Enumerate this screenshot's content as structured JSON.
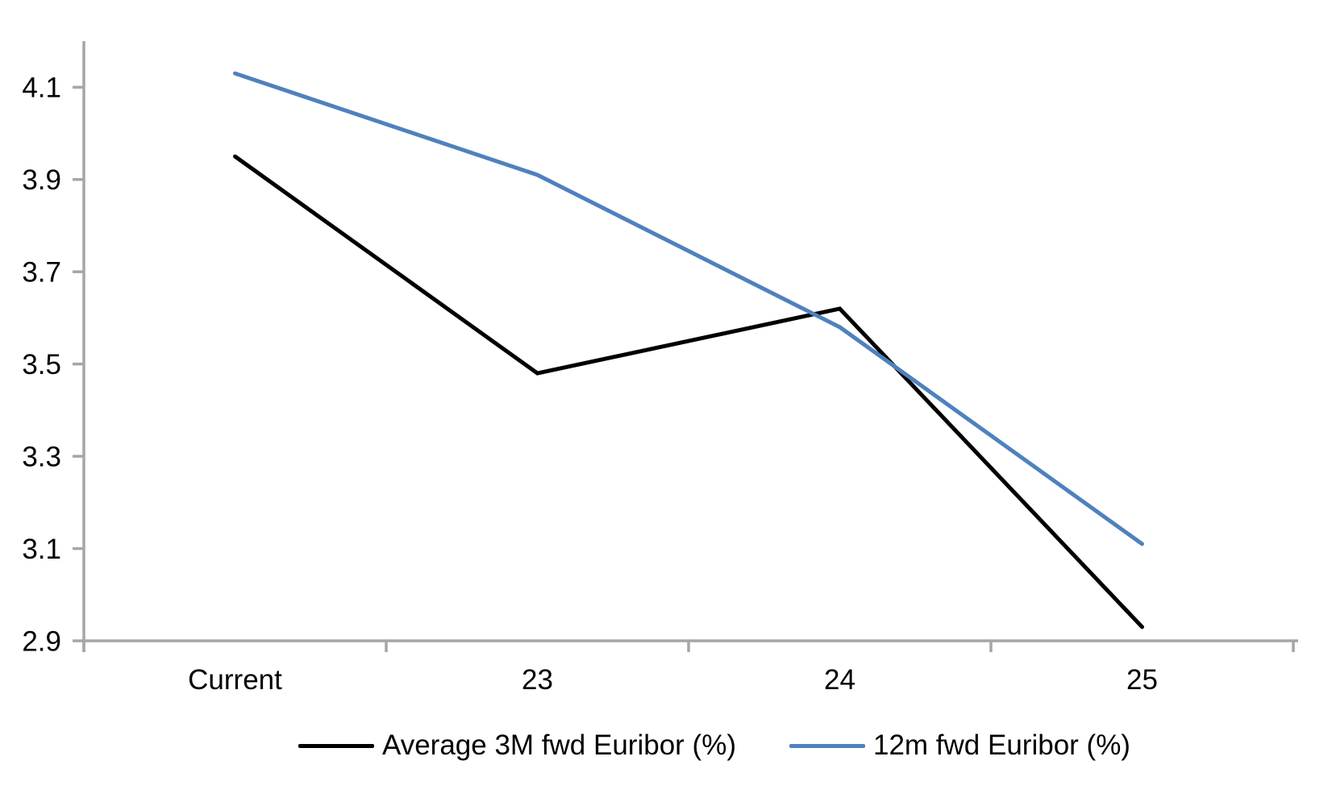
{
  "chart_data": {
    "type": "line",
    "title": "",
    "xlabel": "",
    "ylabel": "",
    "categories": [
      "Current",
      "23",
      "24",
      "25"
    ],
    "series": [
      {
        "name": "Average 3M fwd Euribor (%)",
        "color": "#000000",
        "values": [
          3.95,
          3.48,
          3.62,
          2.93
        ]
      },
      {
        "name": "12m fwd Euribor (%)",
        "color": "#4F81BD",
        "values": [
          4.13,
          3.91,
          3.58,
          3.11
        ]
      }
    ],
    "ylim": [
      2.9,
      4.2
    ],
    "yticks": [
      2.9,
      3.1,
      3.3,
      3.5,
      3.7,
      3.9,
      4.1
    ],
    "grid": false,
    "legend_position": "bottom",
    "axis_color": "#A6A6A6",
    "tick_label_color": "#000000"
  }
}
